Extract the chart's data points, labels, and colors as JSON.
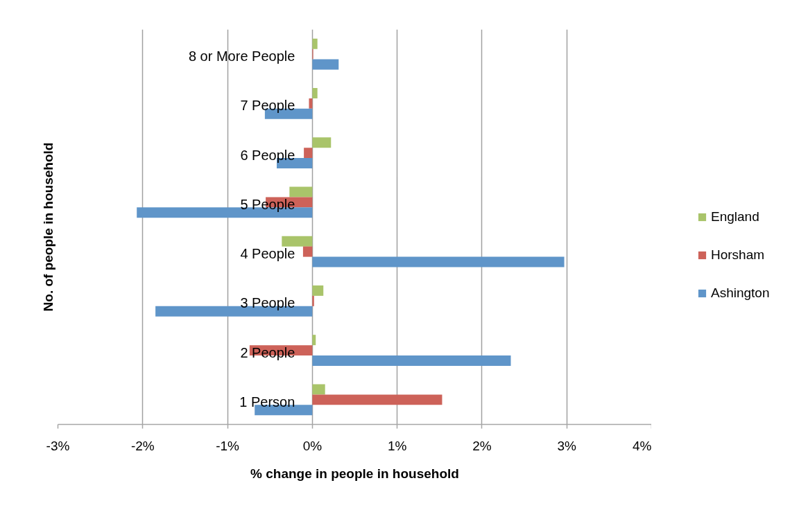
{
  "chart_data": {
    "type": "bar",
    "orientation": "horizontal",
    "xlabel": "% change in people in household",
    "ylabel": "No. of people in household",
    "categories": [
      "8 or More People",
      "7 People",
      "6 People",
      "5 People",
      "4 People",
      "3 People",
      "2 People",
      "1 Person"
    ],
    "series": [
      {
        "name": "England",
        "color": "#a9c46a",
        "values": [
          0.06,
          0.06,
          0.22,
          -0.27,
          -0.36,
          0.13,
          0.04,
          0.15
        ]
      },
      {
        "name": "Horsham",
        "color": "#cd6259",
        "values": [
          0.01,
          -0.04,
          -0.1,
          -0.55,
          -0.11,
          0.02,
          -0.74,
          1.53
        ]
      },
      {
        "name": "Ashington",
        "color": "#5f95c9",
        "values": [
          0.31,
          -0.56,
          -0.42,
          -2.07,
          2.97,
          -1.85,
          2.34,
          -0.68
        ]
      }
    ],
    "xlim": [
      -3,
      4
    ],
    "xticks": [
      {
        "value": -3,
        "label": "-3%"
      },
      {
        "value": -2,
        "label": "-2%"
      },
      {
        "value": -1,
        "label": "-1%"
      },
      {
        "value": 0,
        "label": "0%"
      },
      {
        "value": 1,
        "label": "1%"
      },
      {
        "value": 2,
        "label": "2%"
      },
      {
        "value": 3,
        "label": "3%"
      },
      {
        "value": 4,
        "label": "4%"
      }
    ],
    "grid": "x",
    "legend": "right"
  }
}
